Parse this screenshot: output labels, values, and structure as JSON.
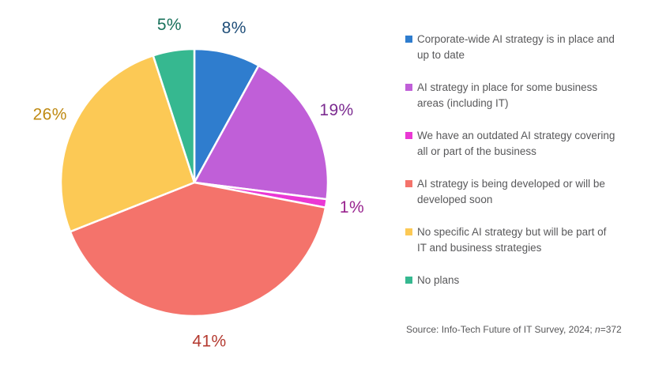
{
  "chart_data": {
    "type": "pie",
    "title": "",
    "start_angle_deg": 0,
    "direction": "clockwise",
    "legend_position": "right",
    "slices": [
      {
        "label": "Corporate-wide AI strategy is in place and\nup to date",
        "value": 8,
        "display": "8%",
        "color": "#2f7dce",
        "label_color": "#1f4e79"
      },
      {
        "label": "AI strategy in place for some business\nareas (including IT)",
        "value": 19,
        "display": "19%",
        "color": "#c05fd8",
        "label_color": "#7b2b90"
      },
      {
        "label": "We have an outdated AI strategy covering\nall or part of the business",
        "value": 1,
        "display": "1%",
        "color": "#ea38d4",
        "label_color": "#99248f"
      },
      {
        "label": "AI strategy is being developed or will be\ndeveloped soon",
        "value": 41,
        "display": "41%",
        "color": "#f4736b",
        "label_color": "#b43a30"
      },
      {
        "label": "No specific AI strategy but will be part of\nIT and business strategies",
        "value": 26,
        "display": "26%",
        "color": "#fcc955",
        "label_color": "#bf8a13"
      },
      {
        "label": "No plans",
        "value": 5,
        "display": "5%",
        "color": "#36b890",
        "label_color": "#17705a"
      }
    ],
    "source_prefix": "Source: Info-Tech Future of IT Survey, 2024; ",
    "source_n": "n",
    "source_suffix": "=372"
  }
}
